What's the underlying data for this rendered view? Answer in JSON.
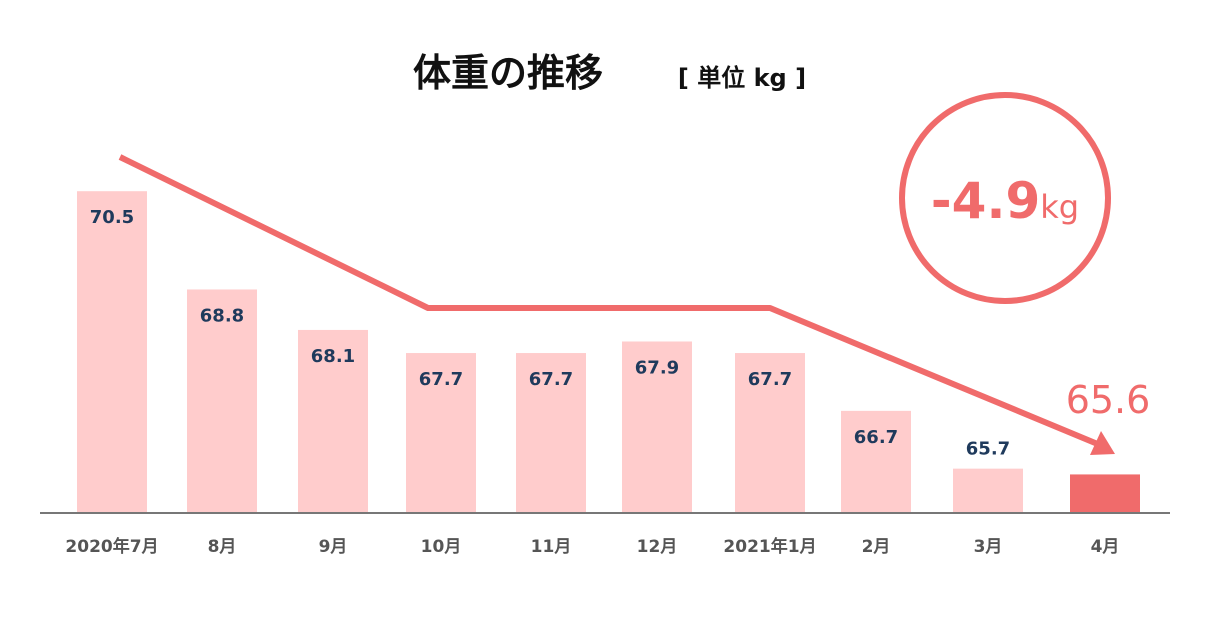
{
  "chart_data": {
    "type": "bar",
    "title": "体重の推移",
    "unit_label": "[ 単位 kg ]",
    "categories": [
      "2020年7月",
      "8月",
      "9月",
      "10月",
      "11月",
      "12月",
      "2021年1月",
      "2月",
      "3月",
      "4月"
    ],
    "values": [
      70.5,
      68.8,
      68.1,
      67.7,
      67.7,
      67.9,
      67.7,
      66.7,
      65.7,
      65.6
    ],
    "value_labels": [
      "70.5",
      "68.8",
      "68.1",
      "67.7",
      "67.7",
      "67.9",
      "67.7",
      "66.7",
      "65.7",
      "65.6"
    ],
    "ylim": [
      64.95,
      71
    ],
    "grid": false,
    "highlight_index": 9,
    "annotation": {
      "value": "-4.9",
      "unit": "kg"
    },
    "colors": {
      "bar": "#ffcccc",
      "highlight": "#f06b6b",
      "label": "#1f3a5c",
      "axis": "#777777",
      "category": "#555555"
    }
  }
}
